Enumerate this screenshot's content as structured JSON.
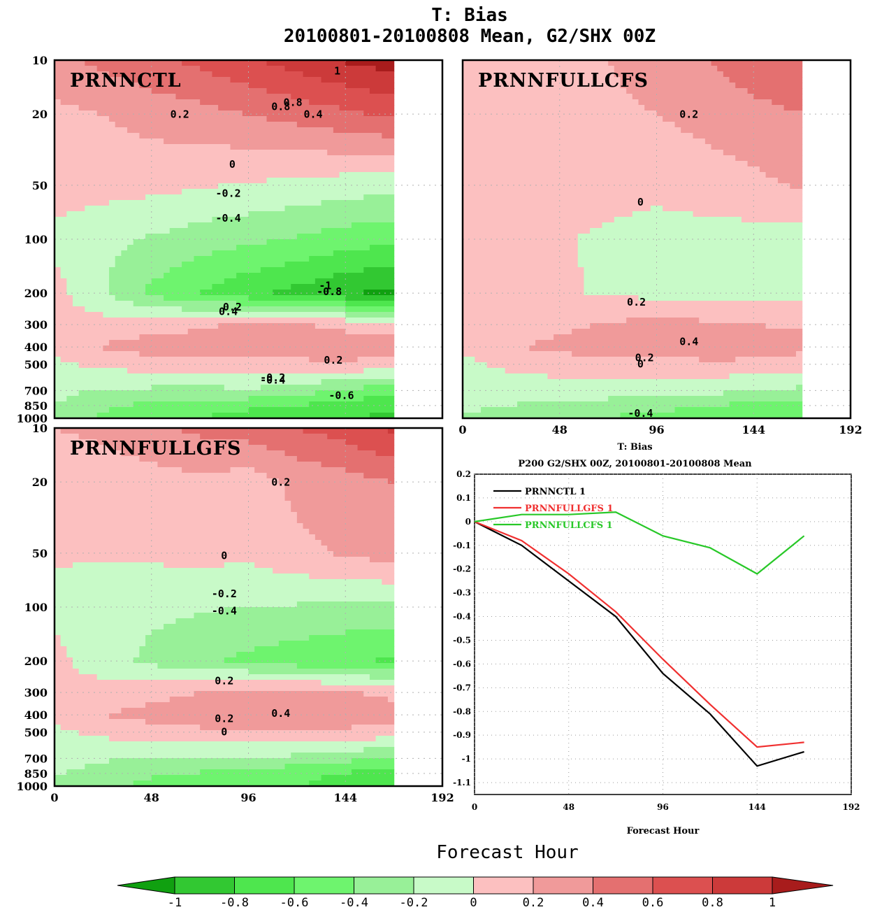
{
  "figure": {
    "title_line1": "T: Bias",
    "title_line2": "20100801-20100808 Mean, G2/SHX 00Z",
    "xlabel": "Forecast Hour"
  },
  "colors": {
    "levels": [
      -1,
      -0.8,
      -0.6,
      -0.4,
      -0.2,
      0,
      0.2,
      0.4,
      0.6,
      0.8,
      1
    ],
    "fills": [
      "#10a010",
      "#32c832",
      "#4ee64e",
      "#6ef46e",
      "#98f098",
      "#c8fac8",
      "#fcc0c0",
      "#f09a9a",
      "#e47070",
      "#dc5050",
      "#cc3a3a",
      "#a81c1c"
    ],
    "line_black": "#000000",
    "line_red": "#f03030",
    "line_green": "#28c828"
  },
  "chart_data": [
    {
      "type": "heatmap",
      "name": "PRNNCTL",
      "x_ticks": [
        "0",
        "48",
        "96",
        "144",
        "192"
      ],
      "y_ticks": [
        "10",
        "20",
        "50",
        "100",
        "200",
        "300",
        "400",
        "500",
        "700",
        "850",
        "1000"
      ],
      "xlim": [
        0,
        192
      ],
      "ylim": [
        1000,
        10
      ],
      "y_scale": "log",
      "data_extent_hours": 168,
      "contour_labels": [
        "1",
        "0.8",
        "0.8",
        "0.4",
        "0.2",
        "0",
        "-0.2",
        "-0.4",
        "-1",
        "-0.8",
        "0.2",
        "0.4",
        "0.2",
        "-0.2",
        "-0.4",
        "-0.6"
      ],
      "x": [
        0,
        24,
        48,
        72,
        96,
        120,
        144,
        168
      ],
      "y": [
        10,
        20,
        50,
        100,
        200,
        300,
        400,
        500,
        700,
        850,
        1000
      ],
      "z": [
        [
          0.35,
          0.45,
          0.55,
          0.65,
          0.78,
          0.9,
          1.02,
          1.1
        ],
        [
          0.15,
          0.2,
          0.28,
          0.33,
          0.4,
          0.48,
          0.56,
          0.65
        ],
        [
          0.08,
          0.08,
          0.06,
          0.02,
          -0.02,
          -0.05,
          -0.1,
          -0.12
        ],
        [
          -0.05,
          -0.15,
          -0.22,
          -0.3,
          -0.36,
          -0.42,
          -0.5,
          -0.55
        ],
        [
          0.08,
          -0.18,
          -0.45,
          -0.6,
          -0.75,
          -0.86,
          -0.98,
          -1.05
        ],
        [
          0.05,
          0.08,
          0.1,
          0.15,
          0.25,
          0.22,
          0.15,
          0.1
        ],
        [
          0.1,
          0.22,
          0.3,
          0.36,
          0.42,
          0.38,
          0.32,
          0.3
        ],
        [
          -0.05,
          0.05,
          0.1,
          0.12,
          0.08,
          0.12,
          0.18,
          0.1
        ],
        [
          -0.15,
          -0.22,
          -0.24,
          -0.26,
          -0.22,
          -0.3,
          -0.45,
          -0.5
        ],
        [
          -0.2,
          -0.35,
          -0.45,
          -0.5,
          -0.55,
          -0.6,
          -0.68,
          -0.75
        ],
        [
          -0.3,
          -0.45,
          -0.55,
          -0.6,
          -0.7,
          -0.75,
          -0.8,
          -0.85
        ]
      ]
    },
    {
      "type": "heatmap",
      "name": "PRNNFULLCFS",
      "x_ticks": [
        "0",
        "48",
        "96",
        "144",
        "192"
      ],
      "y_ticks": [],
      "xlim": [
        0,
        192
      ],
      "ylim": [
        1000,
        10
      ],
      "y_scale": "log",
      "data_extent_hours": 168,
      "contour_labels": [
        "0.2",
        "0",
        "0.2",
        "0.4",
        "0.2",
        "0",
        "-0.4"
      ],
      "x": [
        0,
        24,
        48,
        72,
        96,
        120,
        144,
        168
      ],
      "y": [
        10,
        20,
        50,
        100,
        200,
        300,
        400,
        500,
        700,
        850,
        1000
      ],
      "z": [
        [
          0.05,
          0.1,
          0.15,
          0.2,
          0.3,
          0.4,
          0.5,
          0.55
        ],
        [
          0.02,
          0.05,
          0.1,
          0.15,
          0.2,
          0.28,
          0.35,
          0.4
        ],
        [
          0.02,
          0.03,
          0.05,
          0.05,
          0.04,
          0.08,
          0.15,
          0.22
        ],
        [
          0.03,
          0.02,
          0.01,
          -0.02,
          -0.06,
          -0.06,
          -0.08,
          -0.1
        ],
        [
          0.05,
          0.04,
          0.02,
          -0.02,
          -0.06,
          -0.07,
          -0.06,
          -0.08
        ],
        [
          0.06,
          0.1,
          0.15,
          0.22,
          0.26,
          0.24,
          0.2,
          0.18
        ],
        [
          0.05,
          0.18,
          0.25,
          0.3,
          0.38,
          0.42,
          0.32,
          0.25
        ],
        [
          -0.05,
          0.05,
          0.1,
          0.12,
          0.1,
          0.12,
          0.15,
          0.1
        ],
        [
          -0.1,
          -0.12,
          -0.1,
          -0.08,
          -0.1,
          -0.12,
          -0.2,
          -0.25
        ],
        [
          -0.15,
          -0.2,
          -0.28,
          -0.3,
          -0.35,
          -0.4,
          -0.45,
          -0.5
        ],
        [
          -0.25,
          -0.3,
          -0.38,
          -0.42,
          -0.45,
          -0.5,
          -0.55,
          -0.58
        ]
      ]
    },
    {
      "type": "heatmap",
      "name": "PRNNFULLGFS",
      "x_ticks": [
        "0",
        "48",
        "96",
        "144",
        "192"
      ],
      "y_ticks": [
        "10",
        "20",
        "50",
        "100",
        "200",
        "300",
        "400",
        "500",
        "700",
        "850",
        "1000"
      ],
      "xlim": [
        0,
        192
      ],
      "ylim": [
        1000,
        10
      ],
      "y_scale": "log",
      "data_extent_hours": 168,
      "contour_labels": [
        "0.2",
        "0",
        "-0.2",
        "-0.4",
        "0.2",
        "0.2",
        "0.4",
        "0"
      ],
      "x": [
        0,
        24,
        48,
        72,
        96,
        120,
        144,
        168
      ],
      "y": [
        10,
        20,
        50,
        100,
        200,
        300,
        400,
        500,
        700,
        850,
        1000
      ],
      "z": [
        [
          0.2,
          0.25,
          0.35,
          0.45,
          0.5,
          0.6,
          0.7,
          0.85
        ],
        [
          0.05,
          0.08,
          0.12,
          0.15,
          0.1,
          0.25,
          0.32,
          0.4
        ],
        [
          0.02,
          0.02,
          0.04,
          0.06,
          0.05,
          0.15,
          0.22,
          0.3
        ],
        [
          -0.05,
          -0.1,
          -0.15,
          -0.18,
          -0.2,
          -0.22,
          -0.24,
          -0.25
        ],
        [
          0.05,
          -0.1,
          -0.25,
          -0.35,
          -0.45,
          -0.52,
          -0.58,
          -0.62
        ],
        [
          0.05,
          0.08,
          0.12,
          0.2,
          0.3,
          0.28,
          0.22,
          0.15
        ],
        [
          0.1,
          0.2,
          0.28,
          0.36,
          0.42,
          0.4,
          0.32,
          0.28
        ],
        [
          -0.05,
          0.05,
          0.1,
          0.14,
          0.12,
          0.14,
          0.16,
          0.1
        ],
        [
          -0.12,
          -0.18,
          -0.2,
          -0.22,
          -0.2,
          -0.25,
          -0.35,
          -0.4
        ],
        [
          -0.18,
          -0.28,
          -0.38,
          -0.42,
          -0.48,
          -0.55,
          -0.62,
          -0.65
        ],
        [
          -0.25,
          -0.35,
          -0.45,
          -0.5,
          -0.55,
          -0.6,
          -0.65,
          -0.7
        ]
      ]
    },
    {
      "type": "line",
      "title_line1": "T: Bias",
      "title_line2": "P200 G2/SHX 00Z, 20100801-20100808 Mean",
      "xlabel": "Forecast Hour",
      "xlim": [
        0,
        192
      ],
      "ylim": [
        -1.15,
        0.2
      ],
      "x_ticks": [
        "0",
        "48",
        "96",
        "144",
        "192"
      ],
      "y_ticks": [
        "0.2",
        "0.1",
        "0",
        "-0.1",
        "-0.2",
        "-0.3",
        "-0.4",
        "-0.5",
        "-0.6",
        "-0.7",
        "-0.8",
        "-0.9",
        "-1",
        "-1.1"
      ],
      "grid": true,
      "legend_position": "top-left",
      "x": [
        0,
        24,
        48,
        72,
        96,
        120,
        144,
        168
      ],
      "series": [
        {
          "name": "PRNNCTL 1",
          "color": "#000000",
          "values": [
            0,
            -0.1,
            -0.25,
            -0.4,
            -0.64,
            -0.81,
            -1.03,
            -0.97
          ]
        },
        {
          "name": "PRNNFULLGFS 1",
          "color": "#f03030",
          "values": [
            0,
            -0.08,
            -0.22,
            -0.38,
            -0.58,
            -0.77,
            -0.95,
            -0.93
          ]
        },
        {
          "name": "PRNNFULLCFS 1",
          "color": "#28c828",
          "values": [
            0,
            0.03,
            0.03,
            0.04,
            -0.06,
            -0.11,
            -0.22,
            -0.06
          ]
        }
      ]
    }
  ],
  "colorbar": {
    "tick_labels": [
      "-1",
      "-0.8",
      "-0.6",
      "-0.4",
      "-0.2",
      "0",
      "0.2",
      "0.4",
      "0.6",
      "0.8",
      "1"
    ]
  }
}
